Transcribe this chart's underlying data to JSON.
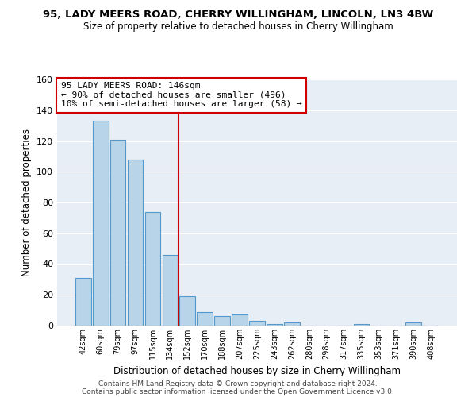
{
  "title1": "95, LADY MEERS ROAD, CHERRY WILLINGHAM, LINCOLN, LN3 4BW",
  "title2": "Size of property relative to detached houses in Cherry Willingham",
  "xlabel": "Distribution of detached houses by size in Cherry Willingham",
  "ylabel": "Number of detached properties",
  "bar_labels": [
    "42sqm",
    "60sqm",
    "79sqm",
    "97sqm",
    "115sqm",
    "134sqm",
    "152sqm",
    "170sqm",
    "188sqm",
    "207sqm",
    "225sqm",
    "243sqm",
    "262sqm",
    "280sqm",
    "298sqm",
    "317sqm",
    "335sqm",
    "353sqm",
    "371sqm",
    "390sqm",
    "408sqm"
  ],
  "bar_values": [
    31,
    133,
    121,
    108,
    74,
    46,
    19,
    9,
    6,
    7,
    3,
    1,
    2,
    0,
    0,
    0,
    1,
    0,
    0,
    2,
    0
  ],
  "bar_color": "#b8d4e8",
  "bar_edge_color": "#5599cc",
  "vline_color": "#cc0000",
  "annotation_line1": "95 LADY MEERS ROAD: 146sqm",
  "annotation_line2": "← 90% of detached houses are smaller (496)",
  "annotation_line3": "10% of semi-detached houses are larger (58) →",
  "box_edge_color": "#cc0000",
  "ylim": [
    0,
    160
  ],
  "yticks": [
    0,
    20,
    40,
    60,
    80,
    100,
    120,
    140,
    160
  ],
  "footer1": "Contains HM Land Registry data © Crown copyright and database right 2024.",
  "footer2": "Contains public sector information licensed under the Open Government Licence v3.0."
}
